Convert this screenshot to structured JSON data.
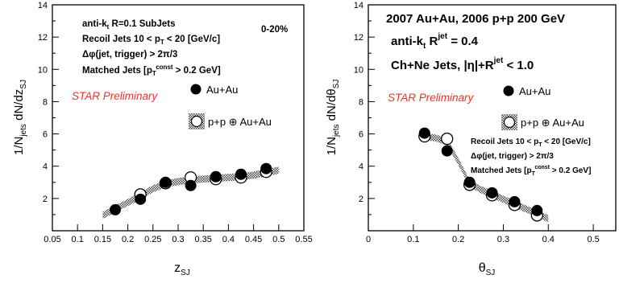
{
  "chart_data": [
    {
      "type": "scatter",
      "xlabel_main": "z",
      "xlabel_sub": "SJ",
      "ylabel": "1/N_jets dN/dz_SJ",
      "xlim": [
        0.05,
        0.55
      ],
      "ylim": [
        0,
        14
      ],
      "x_ticks": [
        "0.05",
        "0.1",
        "0.15",
        "0.2",
        "0.25",
        "0.3",
        "0.35",
        "0.4",
        "0.45",
        "0.5",
        "0.55"
      ],
      "y_ticks": [
        "2",
        "4",
        "6",
        "8",
        "10",
        "12",
        "14"
      ],
      "annotations": [
        "anti-k_t R=0.1 SubJets",
        "Recoil Jets 10 < p_T < 20 [GeV/c]",
        "Δφ(jet, trigger) > 2π/3",
        "Matched Jets [p_T^const > 0.2 GeV]"
      ],
      "centrality": "0-20%",
      "preliminary": "STAR Preliminary",
      "series": [
        {
          "name": "Au+Au",
          "x": [
            0.175,
            0.225,
            0.275,
            0.325,
            0.375,
            0.425,
            0.475
          ],
          "y": [
            1.3,
            1.95,
            3.0,
            2.8,
            3.35,
            3.5,
            3.85
          ]
        },
        {
          "name": "p+p ⊕ Au+Au",
          "x": [
            0.225,
            0.275,
            0.325,
            0.375,
            0.425,
            0.475
          ],
          "y": [
            2.25,
            2.95,
            3.3,
            3.2,
            3.3,
            3.65
          ]
        }
      ],
      "band": {
        "x": [
          0.15,
          0.175,
          0.2,
          0.225,
          0.25,
          0.275,
          0.3,
          0.325,
          0.35,
          0.375,
          0.4,
          0.425,
          0.45,
          0.475,
          0.5
        ],
        "y": [
          0.95,
          1.35,
          1.75,
          2.15,
          2.6,
          2.9,
          3.05,
          3.15,
          3.2,
          3.25,
          3.3,
          3.35,
          3.45,
          3.6,
          3.75
        ]
      }
    },
    {
      "type": "scatter",
      "xlabel_main": "θ",
      "xlabel_sub": "SJ",
      "ylabel": "1/N_jets dN/dθ_SJ",
      "xlim": [
        0,
        0.55
      ],
      "ylim": [
        0,
        14
      ],
      "x_ticks": [
        "0",
        "0.1",
        "0.2",
        "0.3",
        "0.4",
        "0.5"
      ],
      "y_ticks": [
        "2",
        "4",
        "6",
        "8",
        "10",
        "12",
        "14"
      ],
      "header": [
        "2007 Au+Au, 2006 p+p 200 GeV",
        "anti-k_t R^jet = 0.4",
        "Ch+Ne Jets, |η|+R^jet < 1.0"
      ],
      "annotations": [
        "Recoil Jets 10 < p_T < 20 [GeV/c]",
        "Δφ(jet, trigger) > 2π/3",
        "Matched Jets [p_T^const > 0.2 GeV]"
      ],
      "preliminary": "STAR Preliminary",
      "series": [
        {
          "name": "Au+Au",
          "x": [
            0.125,
            0.175,
            0.225,
            0.275,
            0.325,
            0.375
          ],
          "y": [
            6.05,
            4.95,
            3.0,
            2.35,
            1.8,
            1.25
          ]
        },
        {
          "name": "p+p ⊕ Au+Au",
          "x": [
            0.125,
            0.175,
            0.225,
            0.275,
            0.325,
            0.375
          ],
          "y": [
            5.85,
            5.7,
            2.85,
            2.2,
            1.6,
            0.95
          ]
        }
      ],
      "band": {
        "x": [
          0.12,
          0.15,
          0.175,
          0.2,
          0.225,
          0.25,
          0.275,
          0.3,
          0.325,
          0.35,
          0.375,
          0.4
        ],
        "y": [
          5.85,
          5.75,
          5.5,
          4.3,
          2.95,
          2.55,
          2.25,
          1.95,
          1.65,
          1.35,
          1.05,
          0.75
        ]
      }
    }
  ]
}
